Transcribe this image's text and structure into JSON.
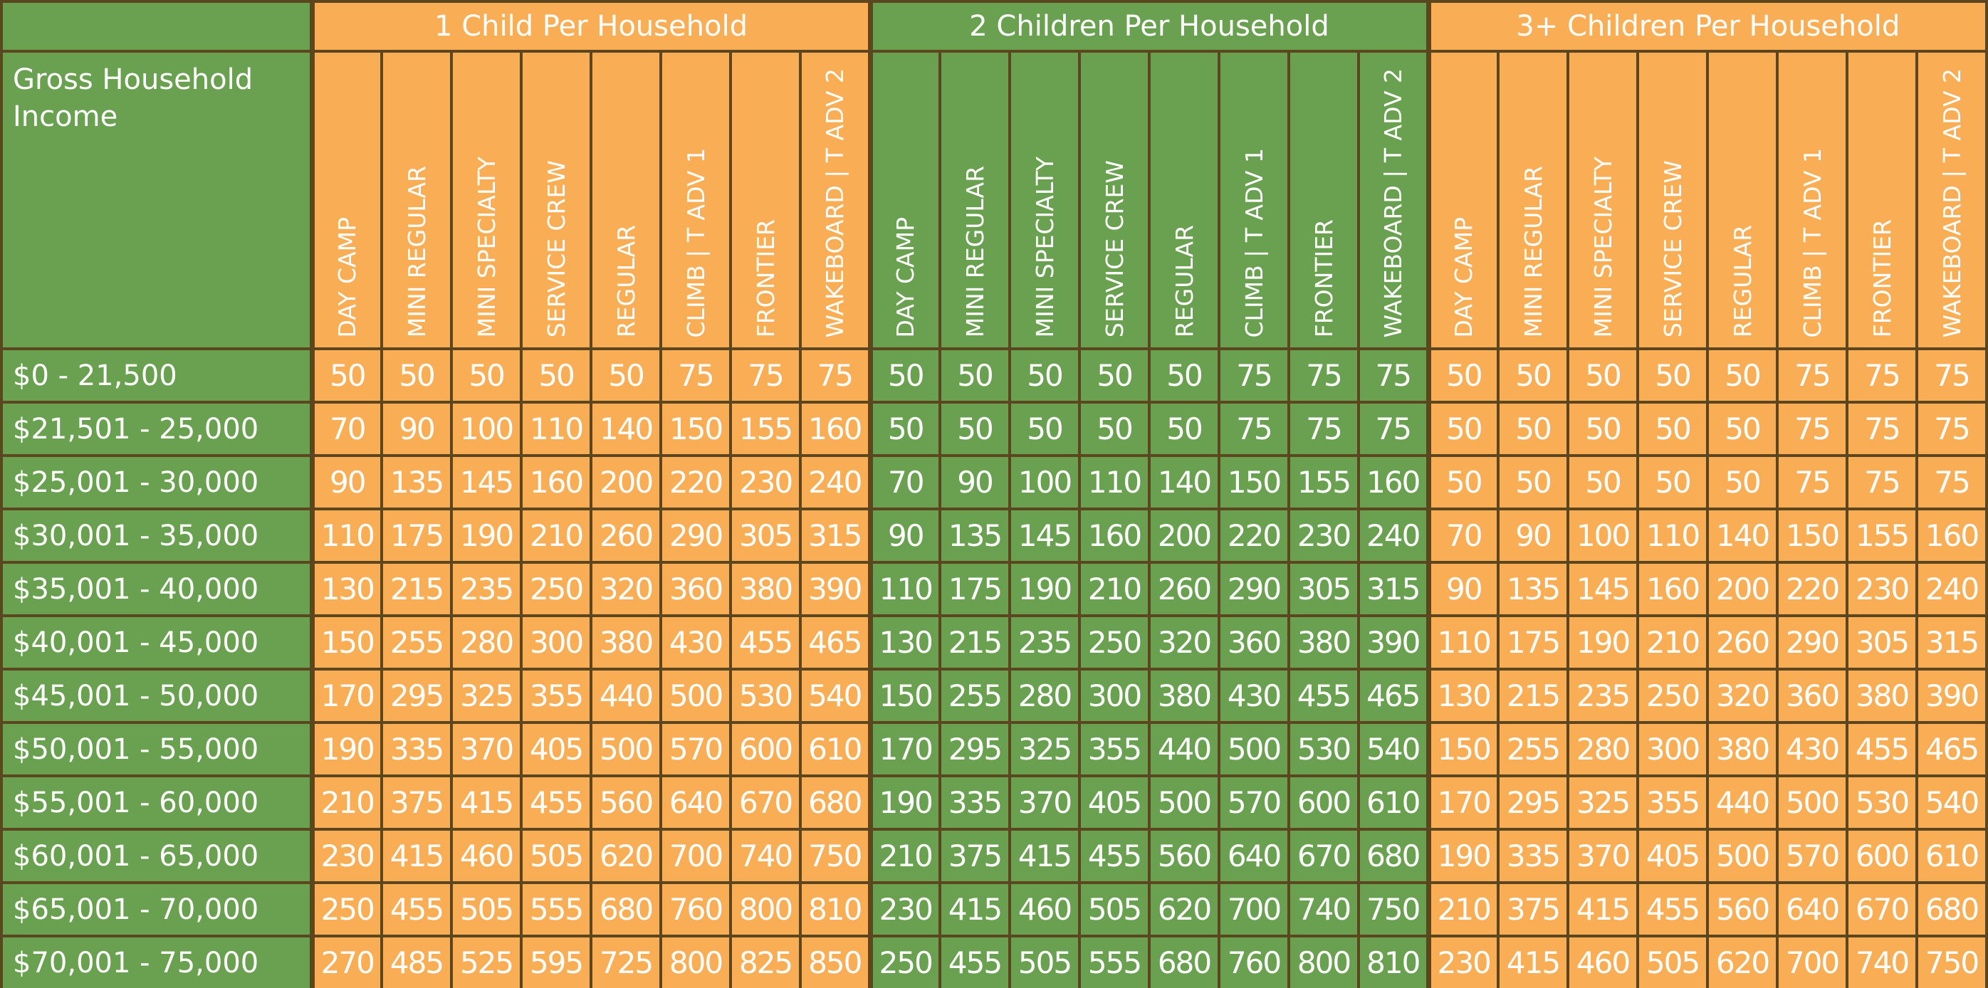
{
  "table": {
    "corner": "Gross Household Income",
    "groups": [
      {
        "name": "1 Child Per Household",
        "columns": [
          "DAY CAMP",
          "MINI REGULAR",
          "MINI SPECIALTY",
          "SERVICE CREW",
          "REGULAR",
          "CLIMB | T ADV 1",
          "FRONTIER",
          "WAKEBOARD | T ADV 2"
        ]
      },
      {
        "name": "2 Children Per Household",
        "columns": [
          "DAY CAMP",
          "MINI REGULAR",
          "MINI SPECIALTY",
          "SERVICE CREW",
          "REGULAR",
          "CLIMB | T ADV 1",
          "FRONTIER",
          "WAKEBOARD | T ADV 2"
        ]
      },
      {
        "name": "3+ Children Per Household",
        "columns": [
          "DAY CAMP",
          "MINI REGULAR",
          "MINI SPECIALTY",
          "SERVICE CREW",
          "REGULAR",
          "CLIMB | T ADV 1",
          "FRONTIER",
          "WAKEBOARD | T ADV 2"
        ]
      }
    ],
    "rows": [
      {
        "income": "$0 - 21,500",
        "values": [
          [
            50,
            50,
            50,
            50,
            50,
            75,
            75,
            75
          ],
          [
            50,
            50,
            50,
            50,
            50,
            75,
            75,
            75
          ],
          [
            50,
            50,
            50,
            50,
            50,
            75,
            75,
            75
          ]
        ]
      },
      {
        "income": "$21,501 - 25,000",
        "values": [
          [
            70,
            90,
            100,
            110,
            140,
            150,
            155,
            160
          ],
          [
            50,
            50,
            50,
            50,
            50,
            75,
            75,
            75
          ],
          [
            50,
            50,
            50,
            50,
            50,
            75,
            75,
            75
          ]
        ]
      },
      {
        "income": "$25,001 - 30,000",
        "values": [
          [
            90,
            135,
            145,
            160,
            200,
            220,
            230,
            240
          ],
          [
            70,
            90,
            100,
            110,
            140,
            150,
            155,
            160
          ],
          [
            50,
            50,
            50,
            50,
            50,
            75,
            75,
            75
          ]
        ]
      },
      {
        "income": "$30,001 - 35,000",
        "values": [
          [
            110,
            175,
            190,
            210,
            260,
            290,
            305,
            315
          ],
          [
            90,
            135,
            145,
            160,
            200,
            220,
            230,
            240
          ],
          [
            70,
            90,
            100,
            110,
            140,
            150,
            155,
            160
          ]
        ]
      },
      {
        "income": "$35,001 - 40,000",
        "values": [
          [
            130,
            215,
            235,
            250,
            320,
            360,
            380,
            390
          ],
          [
            110,
            175,
            190,
            210,
            260,
            290,
            305,
            315
          ],
          [
            90,
            135,
            145,
            160,
            200,
            220,
            230,
            240
          ]
        ]
      },
      {
        "income": "$40,001 - 45,000",
        "values": [
          [
            150,
            255,
            280,
            300,
            380,
            430,
            455,
            465
          ],
          [
            130,
            215,
            235,
            250,
            320,
            360,
            380,
            390
          ],
          [
            110,
            175,
            190,
            210,
            260,
            290,
            305,
            315
          ]
        ]
      },
      {
        "income": "$45,001 - 50,000",
        "values": [
          [
            170,
            295,
            325,
            355,
            440,
            500,
            530,
            540
          ],
          [
            150,
            255,
            280,
            300,
            380,
            430,
            455,
            465
          ],
          [
            130,
            215,
            235,
            250,
            320,
            360,
            380,
            390
          ]
        ]
      },
      {
        "income": "$50,001 - 55,000",
        "values": [
          [
            190,
            335,
            370,
            405,
            500,
            570,
            600,
            610
          ],
          [
            170,
            295,
            325,
            355,
            440,
            500,
            530,
            540
          ],
          [
            150,
            255,
            280,
            300,
            380,
            430,
            455,
            465
          ]
        ]
      },
      {
        "income": "$55,001 - 60,000",
        "values": [
          [
            210,
            375,
            415,
            455,
            560,
            640,
            670,
            680
          ],
          [
            190,
            335,
            370,
            405,
            500,
            570,
            600,
            610
          ],
          [
            170,
            295,
            325,
            355,
            440,
            500,
            530,
            540
          ]
        ]
      },
      {
        "income": "$60,001 - 65,000",
        "values": [
          [
            230,
            415,
            460,
            505,
            620,
            700,
            740,
            750
          ],
          [
            210,
            375,
            415,
            455,
            560,
            640,
            670,
            680
          ],
          [
            190,
            335,
            370,
            405,
            500,
            570,
            600,
            610
          ]
        ]
      },
      {
        "income": "$65,001 - 70,000",
        "values": [
          [
            250,
            455,
            505,
            555,
            680,
            760,
            800,
            810
          ],
          [
            230,
            415,
            460,
            505,
            620,
            700,
            740,
            750
          ],
          [
            210,
            375,
            415,
            455,
            560,
            640,
            670,
            680
          ]
        ]
      },
      {
        "income": "$70,001 - 75,000",
        "values": [
          [
            270,
            485,
            525,
            595,
            725,
            800,
            825,
            850
          ],
          [
            250,
            455,
            505,
            555,
            680,
            760,
            800,
            810
          ],
          [
            230,
            415,
            460,
            505,
            620,
            700,
            740,
            750
          ]
        ]
      }
    ]
  }
}
